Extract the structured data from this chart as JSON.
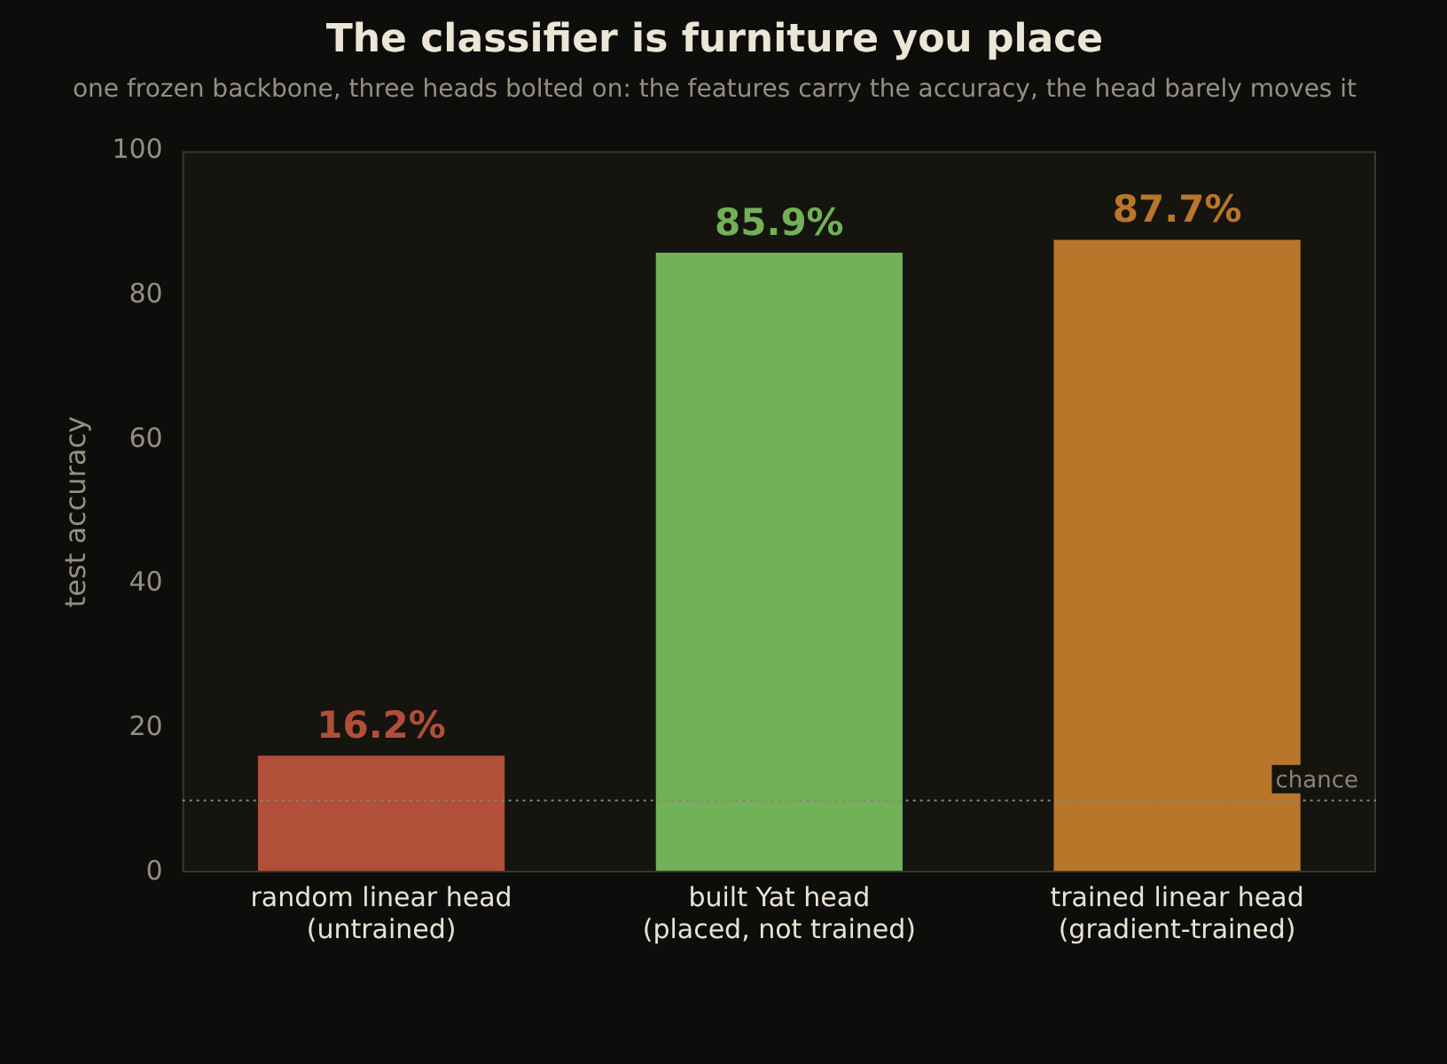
{
  "chart_data": {
    "type": "bar",
    "title": "The classifier is furniture you place",
    "subtitle": "one frozen backbone, three heads bolted on: the features carry the accuracy, the head barely moves it",
    "ylabel": "test accuracy",
    "categories": [
      "random linear head\n(untrained)",
      "built Yat head\n(placed, not trained)",
      "trained linear head\n(gradient-trained)"
    ],
    "values": [
      16.2,
      85.9,
      87.7
    ],
    "colors": [
      "#b24f38",
      "#72b157",
      "#b8762a"
    ],
    "value_labels": [
      "16.2%",
      "85.9%",
      "87.7%"
    ],
    "ylim": [
      0,
      100
    ],
    "yticks": [
      0,
      20,
      40,
      60,
      80,
      100
    ],
    "grid": false,
    "legend": false,
    "ref_lines": [
      {
        "axis": "y",
        "value": 10,
        "label": "chance",
        "color": "#8a8575",
        "line_style": "dotted"
      }
    ]
  }
}
